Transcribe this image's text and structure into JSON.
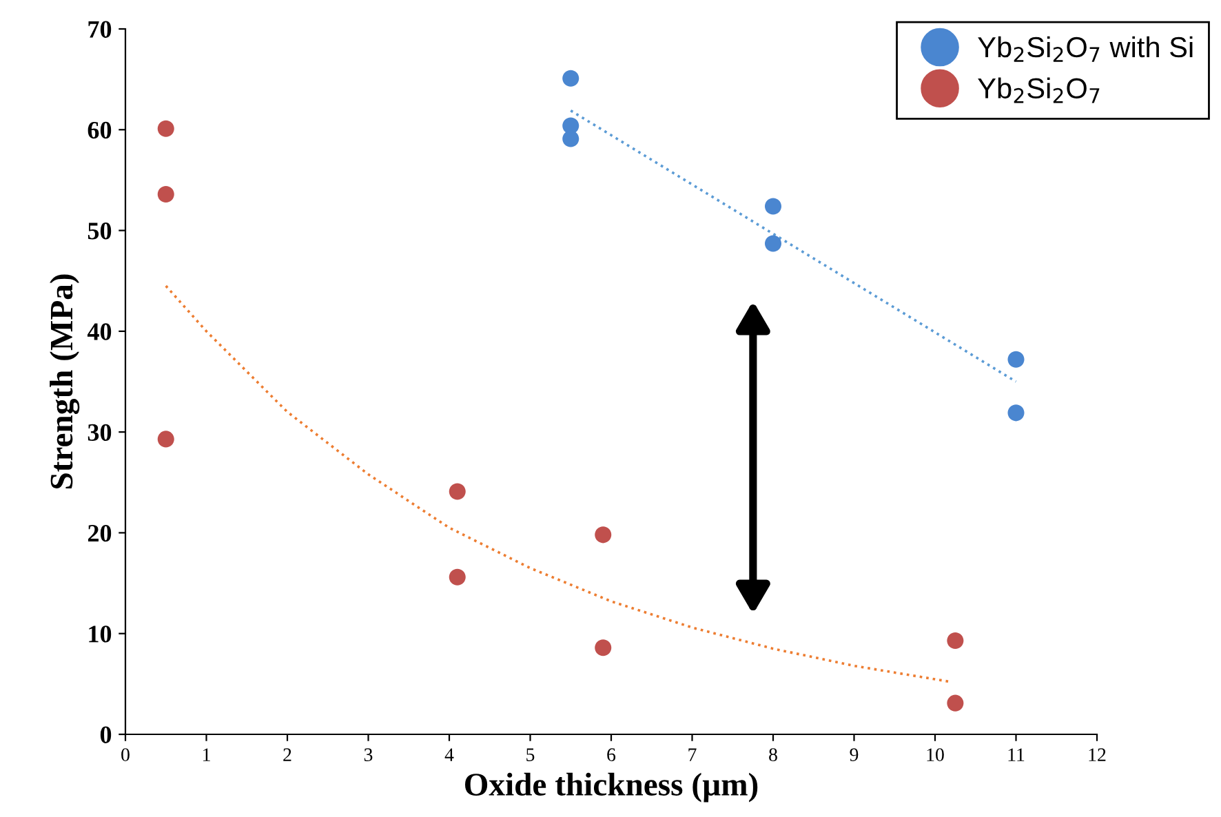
{
  "chart_data": {
    "type": "scatter",
    "xlabel": "Oxide thickness (µm)",
    "ylabel": "Strength (MPa)",
    "xlim": [
      0,
      12
    ],
    "xticks": [
      0,
      1,
      2,
      3,
      4,
      5,
      6,
      7,
      8,
      9,
      10,
      11,
      12
    ],
    "ylim": [
      0,
      70
    ],
    "yticks": [
      0,
      10,
      20,
      30,
      40,
      50,
      60,
      70
    ],
    "legend": "top right",
    "marker": "circle",
    "grid": false,
    "series": [
      {
        "name": "Yb$_{2}$Si$_{2}$O$_{7}$ with Si",
        "color": "#4a86d0",
        "x": [
          5.5,
          5.5,
          5.5,
          8,
          8,
          11,
          11
        ],
        "values": [
          65.1,
          60.4,
          59.1,
          52.4,
          48.7,
          37.2,
          31.9
        ]
      },
      {
        "name": "Yb$_{2}$Si$_{2}$O$_{7}$",
        "color": "#c0504d",
        "x": [
          0.5,
          0.5,
          0.5,
          4.1,
          4.1,
          5.9,
          5.9,
          10.25,
          10.25
        ],
        "values": [
          60.1,
          53.6,
          29.3,
          24.1,
          15.6,
          19.8,
          8.6,
          9.3,
          3.1
        ]
      },
      {
        "type": "line",
        "color": "#5b9bd5",
        "line_style": "dotted",
        "marker": "none",
        "x": [
          5.5,
          11
        ],
        "values": [
          61.9,
          35.0
        ]
      },
      {
        "type": "line",
        "color": "#ed7d31",
        "line_style": "dotted",
        "marker": "none",
        "x": [
          0.5,
          1,
          2,
          3,
          4,
          5,
          6,
          7,
          8,
          9,
          10.2
        ],
        "values": [
          44.5,
          40,
          32,
          25.8,
          20.5,
          16.5,
          13.2,
          10.6,
          8.5,
          6.8,
          5.2
        ]
      }
    ]
  }
}
